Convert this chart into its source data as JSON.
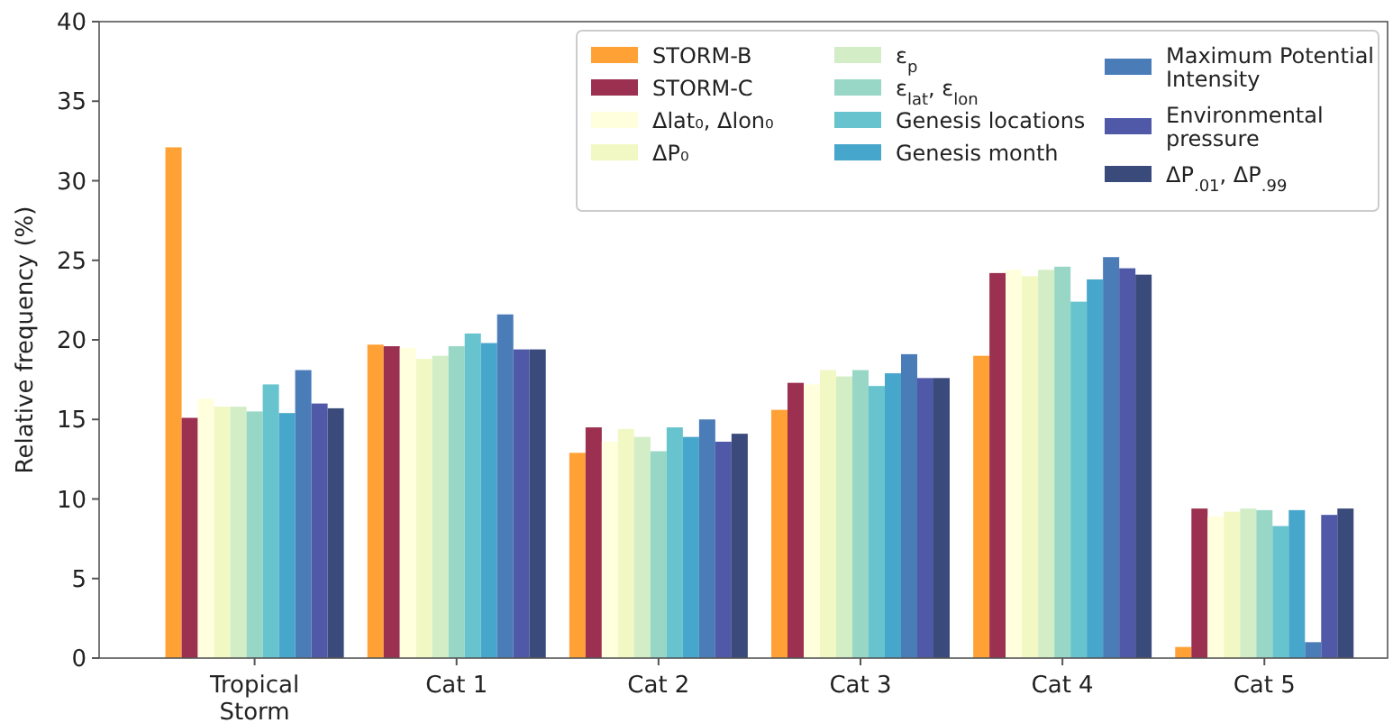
{
  "chart_data": {
    "type": "bar",
    "ylabel": "Relative frequency (%)",
    "categories": [
      "Tropical\nStorm",
      "Cat 1",
      "Cat 2",
      "Cat 3",
      "Cat 4",
      "Cat 5"
    ],
    "ylim": [
      0,
      40
    ],
    "yticks": [
      0,
      5,
      10,
      15,
      20,
      25,
      30,
      35,
      40
    ],
    "grid": false,
    "legend": "top right",
    "series": [
      {
        "name": "STORM-B",
        "color": "#ffa135",
        "values": [
          32.1,
          19.7,
          12.9,
          15.6,
          19.0,
          0.7
        ]
      },
      {
        "name": "STORM-C",
        "color": "#9c3050",
        "values": [
          15.1,
          19.6,
          14.5,
          17.3,
          24.2,
          9.4
        ]
      },
      {
        "name": "Δlat₀, Δlon₀",
        "color": "#ffffdd",
        "values": [
          16.3,
          19.5,
          13.6,
          17.2,
          24.4,
          8.9
        ]
      },
      {
        "name": "ΔP₀",
        "color": "#f1f8c4",
        "values": [
          15.8,
          18.8,
          14.4,
          18.1,
          24.0,
          9.2
        ]
      },
      {
        "name": "ε$_{p}$",
        "color": "#d3edc7",
        "values": [
          15.8,
          19.0,
          13.9,
          17.7,
          24.4,
          9.4
        ]
      },
      {
        "name": "ε$_{lat}$, ε$_{lon}$",
        "color": "#98d7c5",
        "values": [
          15.5,
          19.6,
          13.0,
          18.1,
          24.6,
          9.3
        ]
      },
      {
        "name": "Genesis locations",
        "color": "#67c3cd",
        "values": [
          17.2,
          20.4,
          14.5,
          17.1,
          22.4,
          8.3
        ]
      },
      {
        "name": "Genesis month",
        "color": "#47a6cb",
        "values": [
          15.4,
          19.8,
          13.9,
          17.9,
          23.8,
          9.3
        ]
      },
      {
        "name": "Maximum Potential\nIntensity",
        "color": "#4a7cb8",
        "values": [
          18.1,
          21.6,
          15.0,
          19.1,
          25.2,
          1.0
        ]
      },
      {
        "name": "Environmental\npressure",
        "color": "#5059a7",
        "values": [
          16.0,
          19.4,
          13.6,
          17.6,
          24.5,
          9.0
        ]
      },
      {
        "name": "ΔP$_{.01}$, ΔP$_{.99}$",
        "color": "#3a4a7a",
        "values": [
          15.7,
          19.4,
          14.1,
          17.6,
          24.1,
          9.4
        ]
      }
    ]
  }
}
